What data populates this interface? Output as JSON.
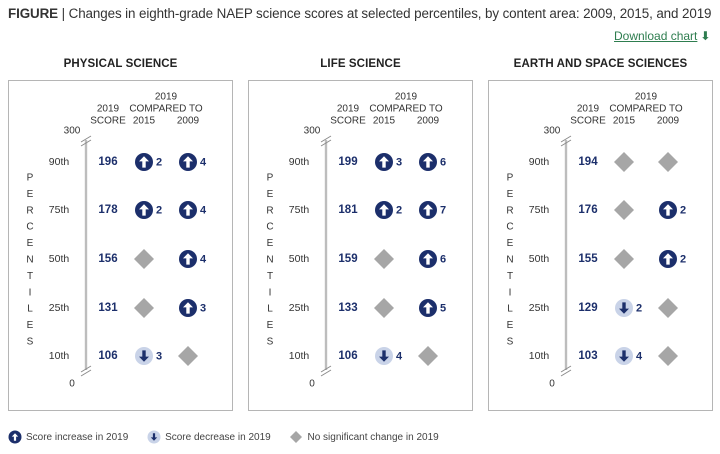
{
  "header": {
    "figure_label": "FIGURE",
    "separator": "|",
    "title": "Changes in eighth-grade NAEP science scores at selected percentiles, by content area: 2009, 2015, and 2019",
    "download_label": "Download chart"
  },
  "colors": {
    "increase": "#1c2f6b",
    "decrease_fill": "#c9d3e8",
    "decrease_arrow": "#1c2f6b",
    "no_change": "#a6a6a6",
    "border": "#b5b5b5",
    "axis": "#bdbdbd",
    "link": "#2e7d4f"
  },
  "legend": {
    "increase": "Score increase in 2019",
    "decrease": "Score decrease in 2019",
    "no_change": "No significant change in 2019"
  },
  "chart_data": {
    "type": "table",
    "percentiles": [
      "90th",
      "75th",
      "50th",
      "25th",
      "10th"
    ],
    "percentile_axis_label": "PERCENTILES",
    "axis_top": "300",
    "axis_bottom": "0",
    "col_headers": {
      "score_line1": "2019",
      "score_line2": "SCORE",
      "compare_line1": "2019",
      "compare_line2": "COMPARED TO",
      "col_2015": "2015",
      "col_2009": "2009"
    },
    "panels": [
      {
        "title": "PHYSICAL SCIENCE",
        "rows": [
          {
            "score": "196",
            "vs2015": {
              "status": "increase",
              "value": "2"
            },
            "vs2009": {
              "status": "increase",
              "value": "4"
            }
          },
          {
            "score": "178",
            "vs2015": {
              "status": "increase",
              "value": "2"
            },
            "vs2009": {
              "status": "increase",
              "value": "4"
            }
          },
          {
            "score": "156",
            "vs2015": {
              "status": "none",
              "value": ""
            },
            "vs2009": {
              "status": "increase",
              "value": "4"
            }
          },
          {
            "score": "131",
            "vs2015": {
              "status": "none",
              "value": ""
            },
            "vs2009": {
              "status": "increase",
              "value": "3"
            }
          },
          {
            "score": "106",
            "vs2015": {
              "status": "decrease",
              "value": "3"
            },
            "vs2009": {
              "status": "none",
              "value": ""
            }
          }
        ]
      },
      {
        "title": "LIFE SCIENCE",
        "rows": [
          {
            "score": "199",
            "vs2015": {
              "status": "increase",
              "value": "3"
            },
            "vs2009": {
              "status": "increase",
              "value": "6"
            }
          },
          {
            "score": "181",
            "vs2015": {
              "status": "increase",
              "value": "2"
            },
            "vs2009": {
              "status": "increase",
              "value": "7"
            }
          },
          {
            "score": "159",
            "vs2015": {
              "status": "none",
              "value": ""
            },
            "vs2009": {
              "status": "increase",
              "value": "6"
            }
          },
          {
            "score": "133",
            "vs2015": {
              "status": "none",
              "value": ""
            },
            "vs2009": {
              "status": "increase",
              "value": "5"
            }
          },
          {
            "score": "106",
            "vs2015": {
              "status": "decrease",
              "value": "4"
            },
            "vs2009": {
              "status": "none",
              "value": ""
            }
          }
        ]
      },
      {
        "title": "EARTH AND SPACE SCIENCES",
        "rows": [
          {
            "score": "194",
            "vs2015": {
              "status": "none",
              "value": ""
            },
            "vs2009": {
              "status": "none",
              "value": ""
            }
          },
          {
            "score": "176",
            "vs2015": {
              "status": "none",
              "value": ""
            },
            "vs2009": {
              "status": "increase",
              "value": "2"
            }
          },
          {
            "score": "155",
            "vs2015": {
              "status": "none",
              "value": ""
            },
            "vs2009": {
              "status": "increase",
              "value": "2"
            }
          },
          {
            "score": "129",
            "vs2015": {
              "status": "decrease",
              "value": "2"
            },
            "vs2009": {
              "status": "none",
              "value": ""
            }
          },
          {
            "score": "103",
            "vs2015": {
              "status": "decrease",
              "value": "4"
            },
            "vs2009": {
              "status": "none",
              "value": ""
            }
          }
        ]
      }
    ]
  }
}
